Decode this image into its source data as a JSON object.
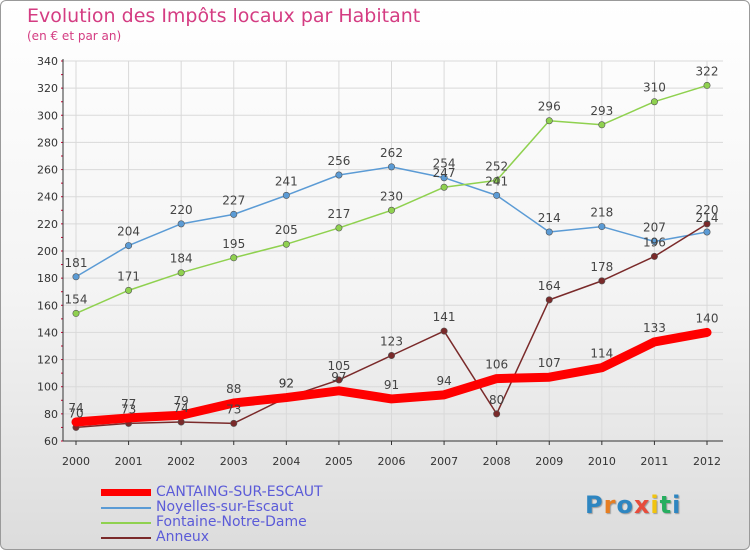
{
  "header": {
    "title": "Evolution des Impôts locaux par Habitant",
    "subtitle": "(en € et par an)"
  },
  "logo": {
    "letters": [
      "P",
      "r",
      "o",
      "x",
      "i",
      "t",
      "i"
    ],
    "colors": [
      "#2e86c1",
      "#e67e22",
      "#2e86c1",
      "#e74c3c",
      "#f1c40f",
      "#27ae60",
      "#2e86c1"
    ]
  },
  "colors": {
    "title": "#d43c82",
    "legend_text": "#5b5bd8",
    "grid": "#d9d9d9",
    "axis": "#333333",
    "tick_red": "#cc0033"
  },
  "chart_data": {
    "type": "line",
    "x": [
      "2000",
      "2001",
      "2002",
      "2003",
      "2004",
      "2005",
      "2006",
      "2007",
      "2008",
      "2009",
      "2010",
      "2011",
      "2012"
    ],
    "ylim": [
      60,
      340
    ],
    "yticks": [
      "60",
      "80",
      "100",
      "120",
      "140",
      "160",
      "180",
      "200",
      "220",
      "240",
      "260",
      "280",
      "300",
      "320",
      "340"
    ],
    "grid": true,
    "legend_position": "bottom-left",
    "series": [
      {
        "name": "CANTAING-SUR-ESCAUT",
        "color": "#ff0000",
        "values": [
          74,
          77,
          79,
          88,
          92,
          97,
          91,
          94,
          106,
          107,
          114,
          133,
          140
        ],
        "labels": [
          "74",
          "77",
          "79",
          "88",
          "92",
          "97",
          "91",
          "94",
          "106",
          "107",
          "114",
          "133",
          "140"
        ]
      },
      {
        "name": "Noyelles-sur-Escaut",
        "color": "#5b9bd5",
        "values": [
          181,
          204,
          220,
          227,
          241,
          256,
          262,
          254,
          241,
          214,
          218,
          207,
          214
        ],
        "labels": [
          "181",
          "204",
          "220",
          "227",
          "241",
          "256",
          "262",
          "254",
          "241",
          "214",
          "218",
          "207",
          "214"
        ]
      },
      {
        "name": "Fontaine-Notre-Dame",
        "color": "#8fd14f",
        "values": [
          154,
          171,
          184,
          195,
          205,
          217,
          230,
          247,
          252,
          296,
          293,
          310,
          322
        ],
        "labels": [
          "154",
          "171",
          "184",
          "195",
          "205",
          "217",
          "230",
          "247",
          "252",
          "296",
          "293",
          "310",
          "322"
        ]
      },
      {
        "name": "Anneux",
        "color": "#7a2a2a",
        "values": [
          70,
          73,
          74,
          73,
          92,
          105,
          123,
          141,
          80,
          164,
          178,
          196,
          220
        ],
        "labels": [
          "70",
          "73",
          "74",
          "73",
          "92",
          "105",
          "123",
          "141",
          "80",
          "164",
          "178",
          "196",
          "220"
        ]
      }
    ]
  }
}
